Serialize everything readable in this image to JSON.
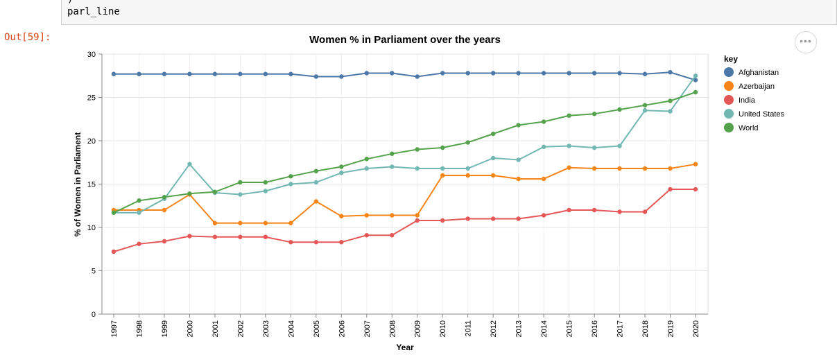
{
  "notebook": {
    "prev_line": ")",
    "code": "parl_line",
    "out_prompt": "Out[59]:",
    "more_icon": "ellipsis-icon"
  },
  "chart_data": {
    "type": "line",
    "title": "Women % in Parliament over the years",
    "xlabel": "Year",
    "ylabel": "% of Women in Parliament",
    "ylim": [
      0,
      30
    ],
    "yticks": [
      0,
      5,
      10,
      15,
      20,
      25,
      30
    ],
    "grid": true,
    "legend": {
      "title": "key",
      "placement": "right"
    },
    "x": [
      "1997",
      "1998",
      "1999",
      "2000",
      "2001",
      "2002",
      "2003",
      "2004",
      "2005",
      "2006",
      "2007",
      "2008",
      "2009",
      "2010",
      "2011",
      "2012",
      "2013",
      "2014",
      "2015",
      "2016",
      "2017",
      "2018",
      "2019",
      "2020"
    ],
    "series": [
      {
        "name": "Afghanistan",
        "color": "#4c78a8",
        "values": [
          27.7,
          27.7,
          27.7,
          27.7,
          27.7,
          27.7,
          27.7,
          27.7,
          27.4,
          27.4,
          27.8,
          27.8,
          27.4,
          27.8,
          27.8,
          27.8,
          27.8,
          27.8,
          27.8,
          27.8,
          27.8,
          27.7,
          27.9,
          27.0
        ]
      },
      {
        "name": "Azerbaijan",
        "color": "#f58518",
        "values": [
          12.0,
          12.0,
          12.0,
          13.8,
          10.5,
          10.5,
          10.5,
          10.5,
          13.0,
          11.3,
          11.4,
          11.4,
          11.4,
          16.0,
          16.0,
          16.0,
          15.6,
          15.6,
          16.9,
          16.8,
          16.8,
          16.8,
          16.8,
          17.3
        ]
      },
      {
        "name": "India",
        "color": "#e45756",
        "values": [
          7.2,
          8.1,
          8.4,
          9.0,
          8.9,
          8.9,
          8.9,
          8.3,
          8.3,
          8.3,
          9.1,
          9.1,
          10.8,
          10.8,
          11.0,
          11.0,
          11.0,
          11.4,
          12.0,
          12.0,
          11.8,
          11.8,
          14.4,
          14.4
        ]
      },
      {
        "name": "United States",
        "color": "#72b7b2",
        "values": [
          11.7,
          11.7,
          13.3,
          17.3,
          14.0,
          13.8,
          14.2,
          15.0,
          15.2,
          16.3,
          16.8,
          17.0,
          16.8,
          16.8,
          16.8,
          18.0,
          17.8,
          19.3,
          19.4,
          19.2,
          19.4,
          23.5,
          23.4,
          27.5
        ]
      },
      {
        "name": "World",
        "color": "#54a24b",
        "values": [
          11.7,
          13.1,
          13.5,
          13.9,
          14.1,
          15.2,
          15.2,
          15.9,
          16.5,
          17.0,
          17.9,
          18.5,
          19.0,
          19.2,
          19.8,
          20.8,
          21.8,
          22.2,
          22.9,
          23.1,
          23.6,
          24.1,
          24.6,
          25.6
        ]
      }
    ]
  }
}
